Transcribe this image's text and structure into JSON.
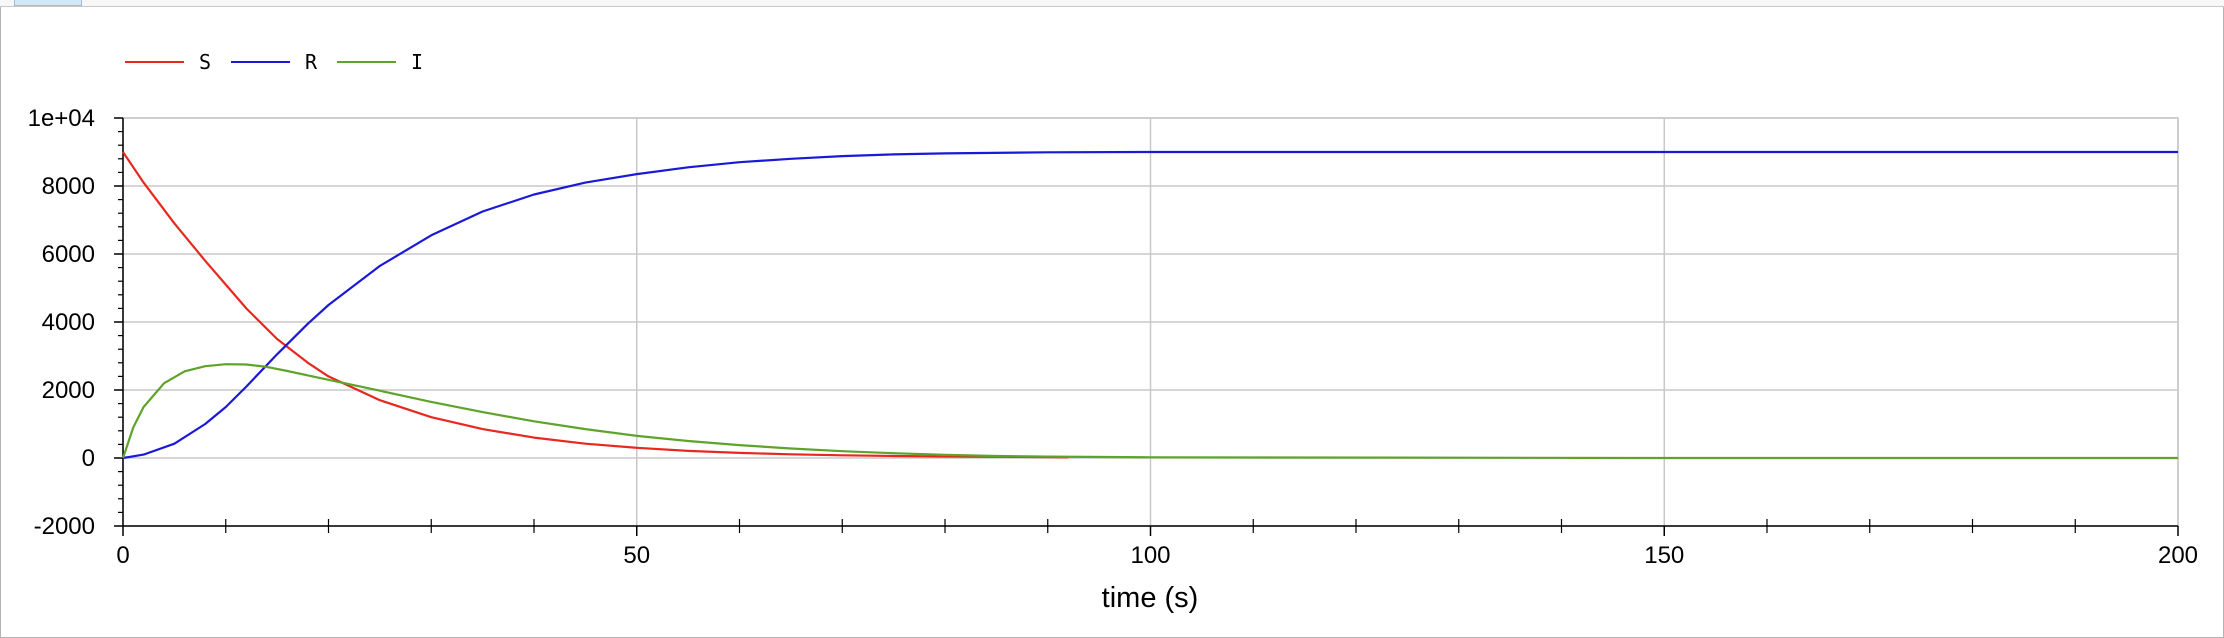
{
  "chart_data": {
    "type": "line",
    "xlabel": "time (s)",
    "ylabel": "",
    "xlim": [
      0,
      200
    ],
    "ylim": [
      -2000,
      10000
    ],
    "xticks": [
      0,
      50,
      100,
      150,
      200
    ],
    "xtick_labels": [
      "0",
      "50",
      "100",
      "150",
      "200"
    ],
    "yticks": [
      -2000,
      0,
      2000,
      4000,
      6000,
      8000,
      10000
    ],
    "ytick_labels": [
      "-2000",
      "0",
      "2000",
      "4000",
      "6000",
      "8000",
      "1e+04"
    ],
    "grid": true,
    "legend_position": "top-left",
    "series": [
      {
        "name": "S",
        "color": "#e8281e",
        "x": [
          0,
          2,
          5,
          8,
          10,
          12,
          15,
          18,
          20,
          25,
          30,
          35,
          40,
          45,
          50,
          55,
          60,
          65,
          70,
          75,
          80,
          85,
          90,
          92
        ],
        "y": [
          9000,
          8100,
          6900,
          5800,
          5100,
          4400,
          3500,
          2800,
          2400,
          1700,
          1200,
          850,
          600,
          420,
          300,
          210,
          150,
          110,
          80,
          60,
          45,
          35,
          25,
          20
        ]
      },
      {
        "name": "R",
        "color": "#1a1ad6",
        "x": [
          0,
          2,
          5,
          8,
          10,
          12,
          15,
          18,
          20,
          25,
          30,
          35,
          40,
          45,
          50,
          55,
          60,
          65,
          70,
          75,
          80,
          90,
          100,
          120,
          150,
          200
        ],
        "y": [
          0,
          100,
          420,
          1000,
          1500,
          2100,
          3050,
          3950,
          4500,
          5650,
          6550,
          7250,
          7750,
          8100,
          8350,
          8550,
          8700,
          8800,
          8880,
          8930,
          8960,
          8990,
          9000,
          9000,
          9000,
          9000
        ]
      },
      {
        "name": "I",
        "color": "#5fa32a",
        "x": [
          0,
          1,
          2,
          4,
          6,
          8,
          10,
          12,
          14,
          16,
          18,
          20,
          25,
          30,
          35,
          40,
          45,
          50,
          55,
          60,
          65,
          70,
          75,
          80,
          85,
          90,
          100,
          150,
          200
        ],
        "y": [
          0,
          900,
          1500,
          2200,
          2550,
          2700,
          2760,
          2750,
          2680,
          2560,
          2430,
          2300,
          1980,
          1650,
          1350,
          1080,
          850,
          650,
          500,
          380,
          280,
          200,
          140,
          90,
          60,
          40,
          20,
          0,
          0
        ]
      }
    ]
  }
}
